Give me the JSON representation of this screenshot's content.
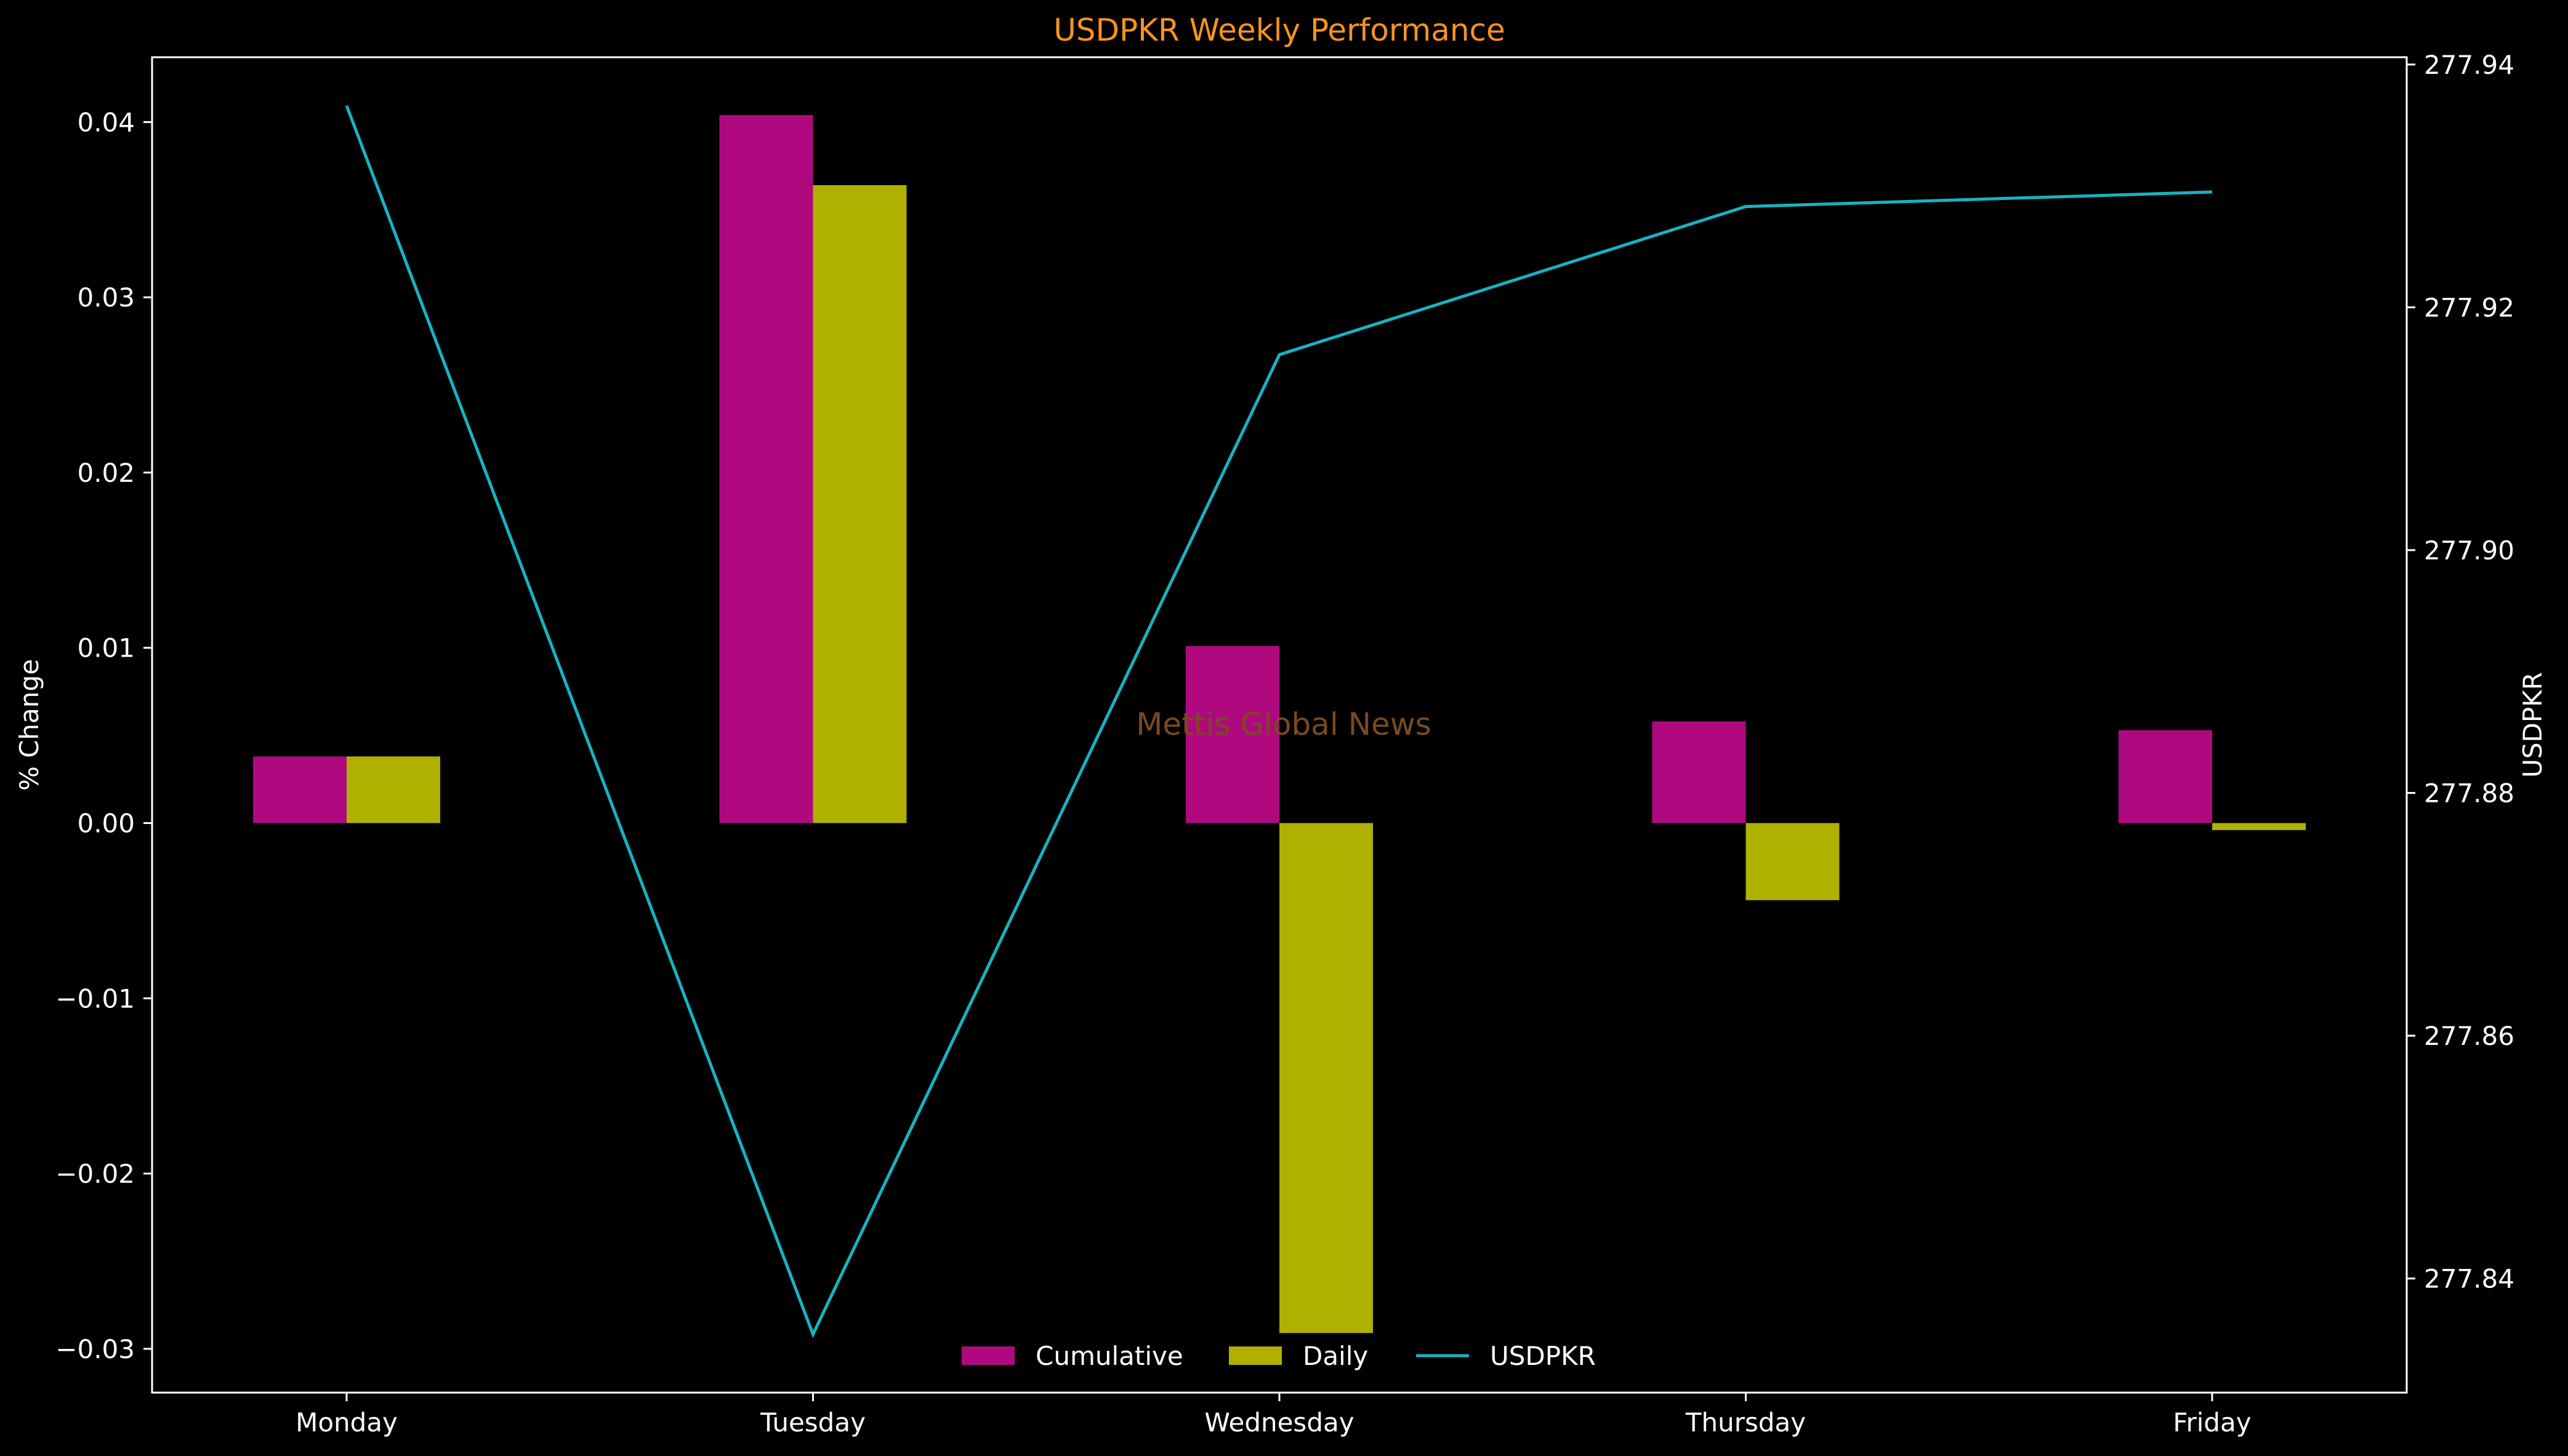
{
  "chart_data": {
    "type": "bar",
    "title": "USDPKR Weekly Performance",
    "xlabel": "",
    "ylabel": "% Change",
    "y2label": "USDPKR",
    "categories": [
      "Monday",
      "Tuesday",
      "Wednesday",
      "Thursday",
      "Friday"
    ],
    "series": [
      {
        "name": "Cumulative",
        "type": "bar",
        "axis": "left",
        "color": "#b0097f",
        "values": [
          0.0038,
          0.0404,
          0.0101,
          0.0058,
          0.0053
        ]
      },
      {
        "name": "Daily",
        "type": "bar",
        "axis": "left",
        "color": "#b0b000",
        "values": [
          0.0038,
          0.0364,
          -0.0291,
          -0.0044,
          -0.0004
        ]
      },
      {
        "name": "USDPKR",
        "type": "line",
        "axis": "right",
        "color": "#17b3c0",
        "values": [
          277.9366,
          277.8354,
          277.9161,
          277.9283,
          277.9295
        ]
      }
    ],
    "ylim": [
      -0.0325,
      0.0437
    ],
    "y2lim": [
      277.8306,
      277.9406
    ],
    "yticks": [
      -0.03,
      -0.02,
      -0.01,
      0.0,
      0.01,
      0.02,
      0.03,
      0.04
    ],
    "y2ticks": [
      277.84,
      277.86,
      277.88,
      277.9,
      277.92,
      277.94
    ],
    "legend": "bottom-center",
    "grid": false,
    "watermark": "Mettis Global News",
    "colors": {
      "background": "#000000",
      "axes": "#ffffff",
      "title": "#f7941d",
      "watermark": "#7a4a1f"
    }
  }
}
